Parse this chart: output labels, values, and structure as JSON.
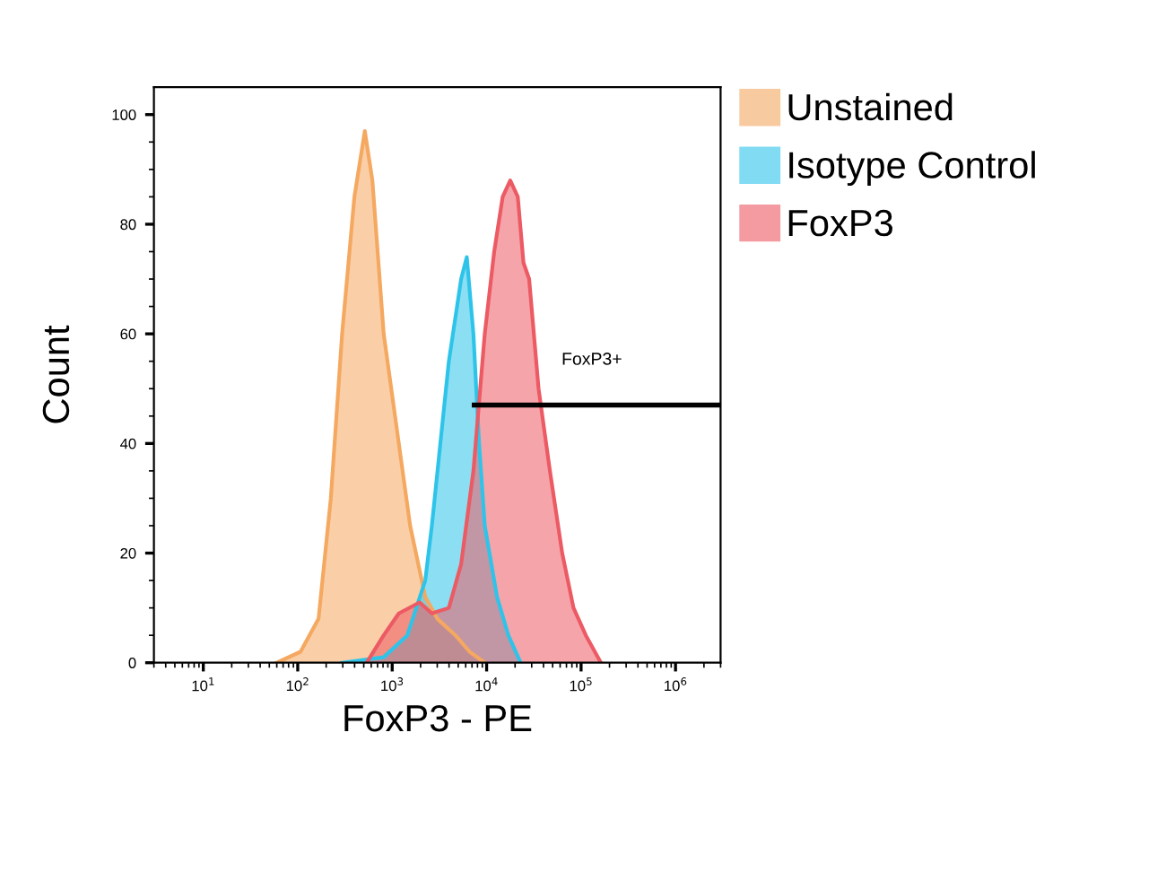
{
  "chart_data": {
    "type": "area",
    "xlabel": "FoxP3 - PE",
    "ylabel": "Count",
    "log": "x",
    "xlim": [
      3,
      3000000
    ],
    "xticks": [
      {
        "value": 10,
        "label": "10$^{1}$"
      },
      {
        "value": 100,
        "label": "10$^{2}$"
      },
      {
        "value": 1000,
        "label": "10$^{3}$"
      },
      {
        "value": 10000,
        "label": "10$^{4}$"
      },
      {
        "value": 100000,
        "label": "10$^{5}$"
      },
      {
        "value": 1000000,
        "label": "10$^{6}$"
      }
    ],
    "ylim": [
      0,
      105
    ],
    "yticks": [
      0,
      {
        "value": 5,
        "label": null
      },
      {
        "value": 10,
        "label": null
      },
      {
        "value": 15,
        "label": null
      },
      20,
      {
        "value": 25,
        "label": null
      },
      {
        "value": 30,
        "label": null
      },
      {
        "value": 35,
        "label": null
      },
      40,
      {
        "value": 45,
        "label": null
      },
      {
        "value": 50,
        "label": null
      },
      {
        "value": 55,
        "label": null
      },
      60,
      {
        "value": 65,
        "label": null
      },
      {
        "value": 70,
        "label": null
      },
      {
        "value": 75,
        "label": null
      },
      80,
      {
        "value": 85,
        "label": null
      },
      {
        "value": 90,
        "label": null
      },
      {
        "value": 95,
        "label": null
      },
      100
    ],
    "legend": "top right",
    "grid": false,
    "series": [
      {
        "name": "Unstained",
        "color": "#f5a860",
        "x": [
          60,
          107,
          166,
          224,
          295,
          398,
          513,
          617,
          813,
          1175,
          1549,
          2239,
          3020,
          4677,
          6607,
          9550
        ],
        "values": [
          0,
          2,
          8,
          30,
          60,
          85,
          97,
          88,
          60,
          40,
          25,
          12,
          8,
          5,
          2,
          0
        ]
      },
      {
        "name": "Isotype Control",
        "color": "#2ec4ea",
        "x": [
          295,
          813,
          1445,
          2239,
          2630,
          3236,
          3981,
          5370,
          6166,
          7244,
          8318,
          9550,
          12882,
          16982,
          22909
        ],
        "values": [
          0,
          1,
          5,
          15,
          25,
          40,
          55,
          70,
          74,
          60,
          40,
          25,
          12,
          5,
          0
        ]
      },
      {
        "name": "FoxP3",
        "color": "#ec5a64",
        "x": [
          537,
          813,
          1175,
          1950,
          2630,
          3981,
          5370,
          7244,
          9550,
          12023,
          14791,
          17783,
          21380,
          24547,
          28184,
          35481,
          46774,
          63096,
          83176,
          112202,
          162181
        ],
        "values": [
          0,
          5,
          9,
          11,
          9,
          10,
          18,
          35,
          60,
          75,
          85,
          88,
          85,
          73,
          70,
          50,
          35,
          20,
          10,
          5,
          0
        ]
      },
      {
        "type": "line",
        "color": "#000000",
        "x": [
          7400,
          2800000
        ],
        "values": [
          47,
          47
        ]
      }
    ],
    "annotations": [
      {
        "text": "FoxP3+",
        "x": 130000,
        "y": 47
      }
    ]
  }
}
